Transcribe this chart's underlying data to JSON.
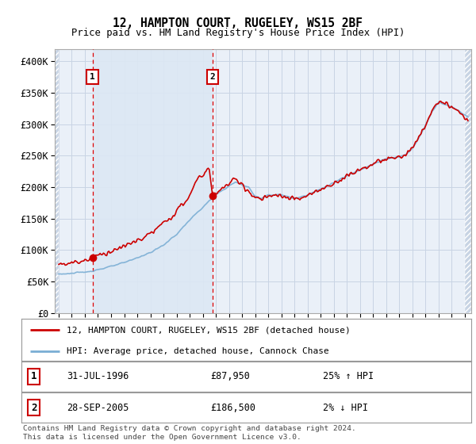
{
  "title1": "12, HAMPTON COURT, RUGELEY, WS15 2BF",
  "title2": "Price paid vs. HM Land Registry's House Price Index (HPI)",
  "ylim": [
    0,
    420000
  ],
  "yticks": [
    0,
    50000,
    100000,
    150000,
    200000,
    250000,
    300000,
    350000,
    400000
  ],
  "ytick_labels": [
    "£0",
    "£50K",
    "£100K",
    "£150K",
    "£200K",
    "£250K",
    "£300K",
    "£350K",
    "£400K"
  ],
  "sale1_year": 1996.58,
  "sale1_price": 87950,
  "sale1_label": "1",
  "sale2_year": 2005.74,
  "sale2_price": 186500,
  "sale2_label": "2",
  "legend_line1": "12, HAMPTON COURT, RUGELEY, WS15 2BF (detached house)",
  "legend_line2": "HPI: Average price, detached house, Cannock Chase",
  "annotation1_date": "31-JUL-1996",
  "annotation1_price": "£87,950",
  "annotation1_hpi": "25% ↑ HPI",
  "annotation2_date": "28-SEP-2005",
  "annotation2_price": "£186,500",
  "annotation2_hpi": "2% ↓ HPI",
  "footer": "Contains HM Land Registry data © Crown copyright and database right 2024.\nThis data is licensed under the Open Government Licence v3.0.",
  "hatch_color": "#c8d4e4",
  "shade_between_color": "#dce8f4",
  "grid_color": "#c8d4e4",
  "bg_color": "#eaf0f8",
  "red_line": "#cc0000",
  "blue_line": "#7aaed4",
  "xmin": 1994.0,
  "xmax": 2025.5
}
